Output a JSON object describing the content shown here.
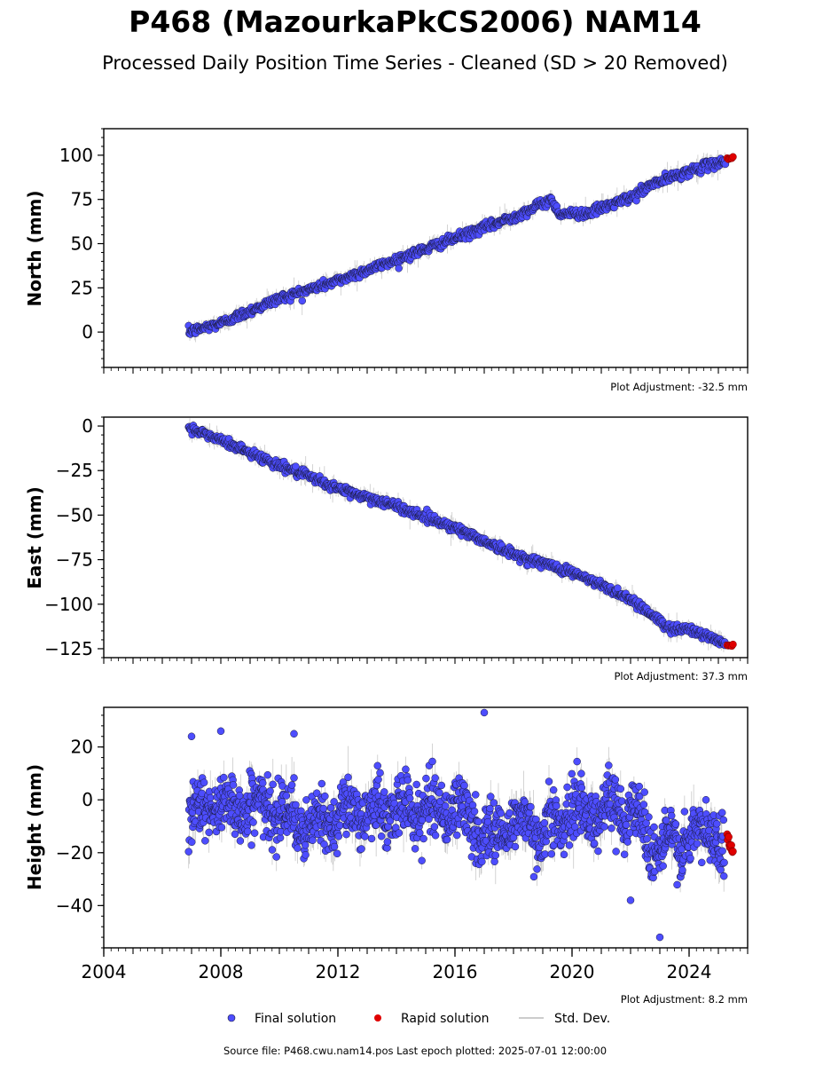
{
  "title": "P468 (MazourkaPkCS2006) NAM14",
  "subtitle": "Processed Daily Position Time Series - Cleaned (SD > 20 Removed)",
  "source_text": "Source file: P468.cwu.nam14.pos  Last epoch plotted: 2025-07-01 12:00:00",
  "legend": [
    {
      "label": "Final solution",
      "color": "#4d4dff",
      "marker": "circle"
    },
    {
      "label": "Rapid solution",
      "color": "#e00000",
      "marker": "circle"
    },
    {
      "label": "Std. Dev.",
      "color": "#bbbbbb",
      "marker": "line"
    }
  ],
  "colors": {
    "final": "#4d4dff",
    "rapid": "#e00000",
    "std": "#888888",
    "edge": "#1a1a3a"
  },
  "chart_data": [
    {
      "type": "scatter",
      "ylabel": "North (mm)",
      "adjustment_label": "Plot Adjustment: -32.5 mm",
      "xlim": [
        2004,
        2026
      ],
      "ylim": [
        -20,
        115
      ],
      "yticks": [
        0,
        25,
        50,
        75,
        100
      ],
      "show_x_tick_labels": false,
      "series": [
        {
          "name": "Final solution",
          "x": [
            2006.9,
            2008.0,
            2010.0,
            2012.0,
            2014.0,
            2016.0,
            2018.0,
            2019.3,
            2019.55,
            2020.5,
            2022.0,
            2022.8,
            2024.0,
            2025.25
          ],
          "y": [
            0,
            5,
            19,
            29,
            41,
            53,
            65,
            75,
            67,
            67,
            76,
            84,
            91,
            97
          ]
        },
        {
          "name": "Rapid solution",
          "x": [
            2025.3,
            2025.5
          ],
          "y": [
            98,
            99
          ]
        }
      ],
      "std_dev_typical": [
        2,
        9
      ]
    },
    {
      "type": "scatter",
      "ylabel": "East (mm)",
      "adjustment_label": "Plot Adjustment: 37.3 mm",
      "xlim": [
        2004,
        2026
      ],
      "ylim": [
        -130,
        5
      ],
      "yticks": [
        0,
        -25,
        -50,
        -75,
        -100,
        -125
      ],
      "show_x_tick_labels": false,
      "series": [
        {
          "name": "Final solution",
          "x": [
            2006.9,
            2008.0,
            2010.0,
            2012.0,
            2014.0,
            2016.0,
            2018.0,
            2020.0,
            2022.0,
            2022.9,
            2023.2,
            2024.0,
            2025.25
          ],
          "y": [
            -1,
            -8,
            -22,
            -35,
            -45,
            -57,
            -72,
            -82,
            -97,
            -108,
            -113,
            -114,
            -122
          ]
        },
        {
          "name": "Rapid solution",
          "x": [
            2025.3,
            2025.5
          ],
          "y": [
            -123,
            -123
          ]
        }
      ],
      "std_dev_typical": [
        2,
        9
      ]
    },
    {
      "type": "scatter",
      "ylabel": "Height (mm)",
      "adjustment_label": "Plot Adjustment: 8.2 mm",
      "xlim": [
        2004,
        2026
      ],
      "ylim": [
        -56,
        35
      ],
      "yticks": [
        20,
        0,
        -20,
        -40
      ],
      "xticks": [
        2004,
        2008,
        2012,
        2016,
        2020,
        2024
      ],
      "show_x_tick_labels": true,
      "series": [
        {
          "name": "Final solution",
          "x": [
            2006.9,
            2008.0,
            2010.0,
            2011.0,
            2012.0,
            2014.0,
            2016.0,
            2017.2,
            2018.0,
            2019.0,
            2020.0,
            2022.0,
            2023.0,
            2023.5,
            2024.0,
            2024.7,
            2025.2
          ],
          "y": [
            -5,
            -2,
            -3,
            -12,
            -5,
            -4,
            -3,
            -15,
            -8,
            -12,
            -5,
            -3,
            -20,
            -15,
            -17,
            -10,
            -18
          ],
          "notable_points": [
            {
              "x": 2007.0,
              "y": 24
            },
            {
              "x": 2008.0,
              "y": 26
            },
            {
              "x": 2010.5,
              "y": 25
            },
            {
              "x": 2017.0,
              "y": 33
            },
            {
              "x": 2023.0,
              "y": -52
            },
            {
              "x": 2022.0,
              "y": -38
            }
          ]
        },
        {
          "name": "Rapid solution",
          "x": [
            2025.3,
            2025.4,
            2025.5
          ],
          "y": [
            -13,
            -17,
            -20
          ]
        }
      ],
      "std_dev_typical": [
        3,
        12
      ]
    }
  ]
}
